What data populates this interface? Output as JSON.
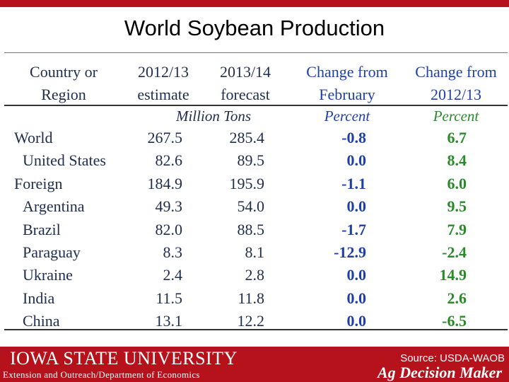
{
  "title": "World Soybean Production",
  "headers": {
    "country": [
      "Country or",
      "Region"
    ],
    "est": [
      "2012/13",
      "estimate"
    ],
    "fc": [
      "2013/14",
      "forecast"
    ],
    "feb": [
      "Change from",
      "February"
    ],
    "yr": [
      "Change from",
      "2012/13"
    ]
  },
  "units": {
    "tons": "Million Tons",
    "pct_feb": "Percent",
    "pct_yr": "Percent"
  },
  "rows": [
    {
      "name": "World",
      "indent": false,
      "est": "267.5",
      "fc": "285.4",
      "feb": "-0.8",
      "yr": "6.7"
    },
    {
      "name": "United States",
      "indent": true,
      "est": "82.6",
      "fc": "89.5",
      "feb": "0.0",
      "yr": "8.4"
    },
    {
      "name": "Foreign",
      "indent": false,
      "est": "184.9",
      "fc": "195.9",
      "feb": "-1.1",
      "yr": "6.0"
    },
    {
      "name": "Argentina",
      "indent": true,
      "est": "49.3",
      "fc": "54.0",
      "feb": "0.0",
      "yr": "9.5"
    },
    {
      "name": "Brazil",
      "indent": true,
      "est": "82.0",
      "fc": "88.5",
      "feb": "-1.7",
      "yr": "7.9"
    },
    {
      "name": "Paraguay",
      "indent": true,
      "est": "8.3",
      "fc": "8.1",
      "feb": "-12.9",
      "yr": "-2.4"
    },
    {
      "name": "Ukraine",
      "indent": true,
      "est": "2.4",
      "fc": "2.8",
      "feb": "0.0",
      "yr": "14.9"
    },
    {
      "name": "India",
      "indent": true,
      "est": "11.5",
      "fc": "11.8",
      "feb": "0.0",
      "yr": "2.6"
    },
    {
      "name": "China",
      "indent": true,
      "est": "13.1",
      "fc": "12.2",
      "feb": "0.0",
      "yr": "-6.5"
    }
  ],
  "footer": {
    "university": "IOWA STATE UNIVERSITY",
    "extension": "Extension and Outreach/Department of Economics",
    "source": "Source: USDA-WAOB",
    "brand": "Ag Decision Maker"
  },
  "colors": {
    "brand_red": "#b5121b",
    "change_feb": "#1f3fa8",
    "change_yr": "#2a8a2a"
  }
}
